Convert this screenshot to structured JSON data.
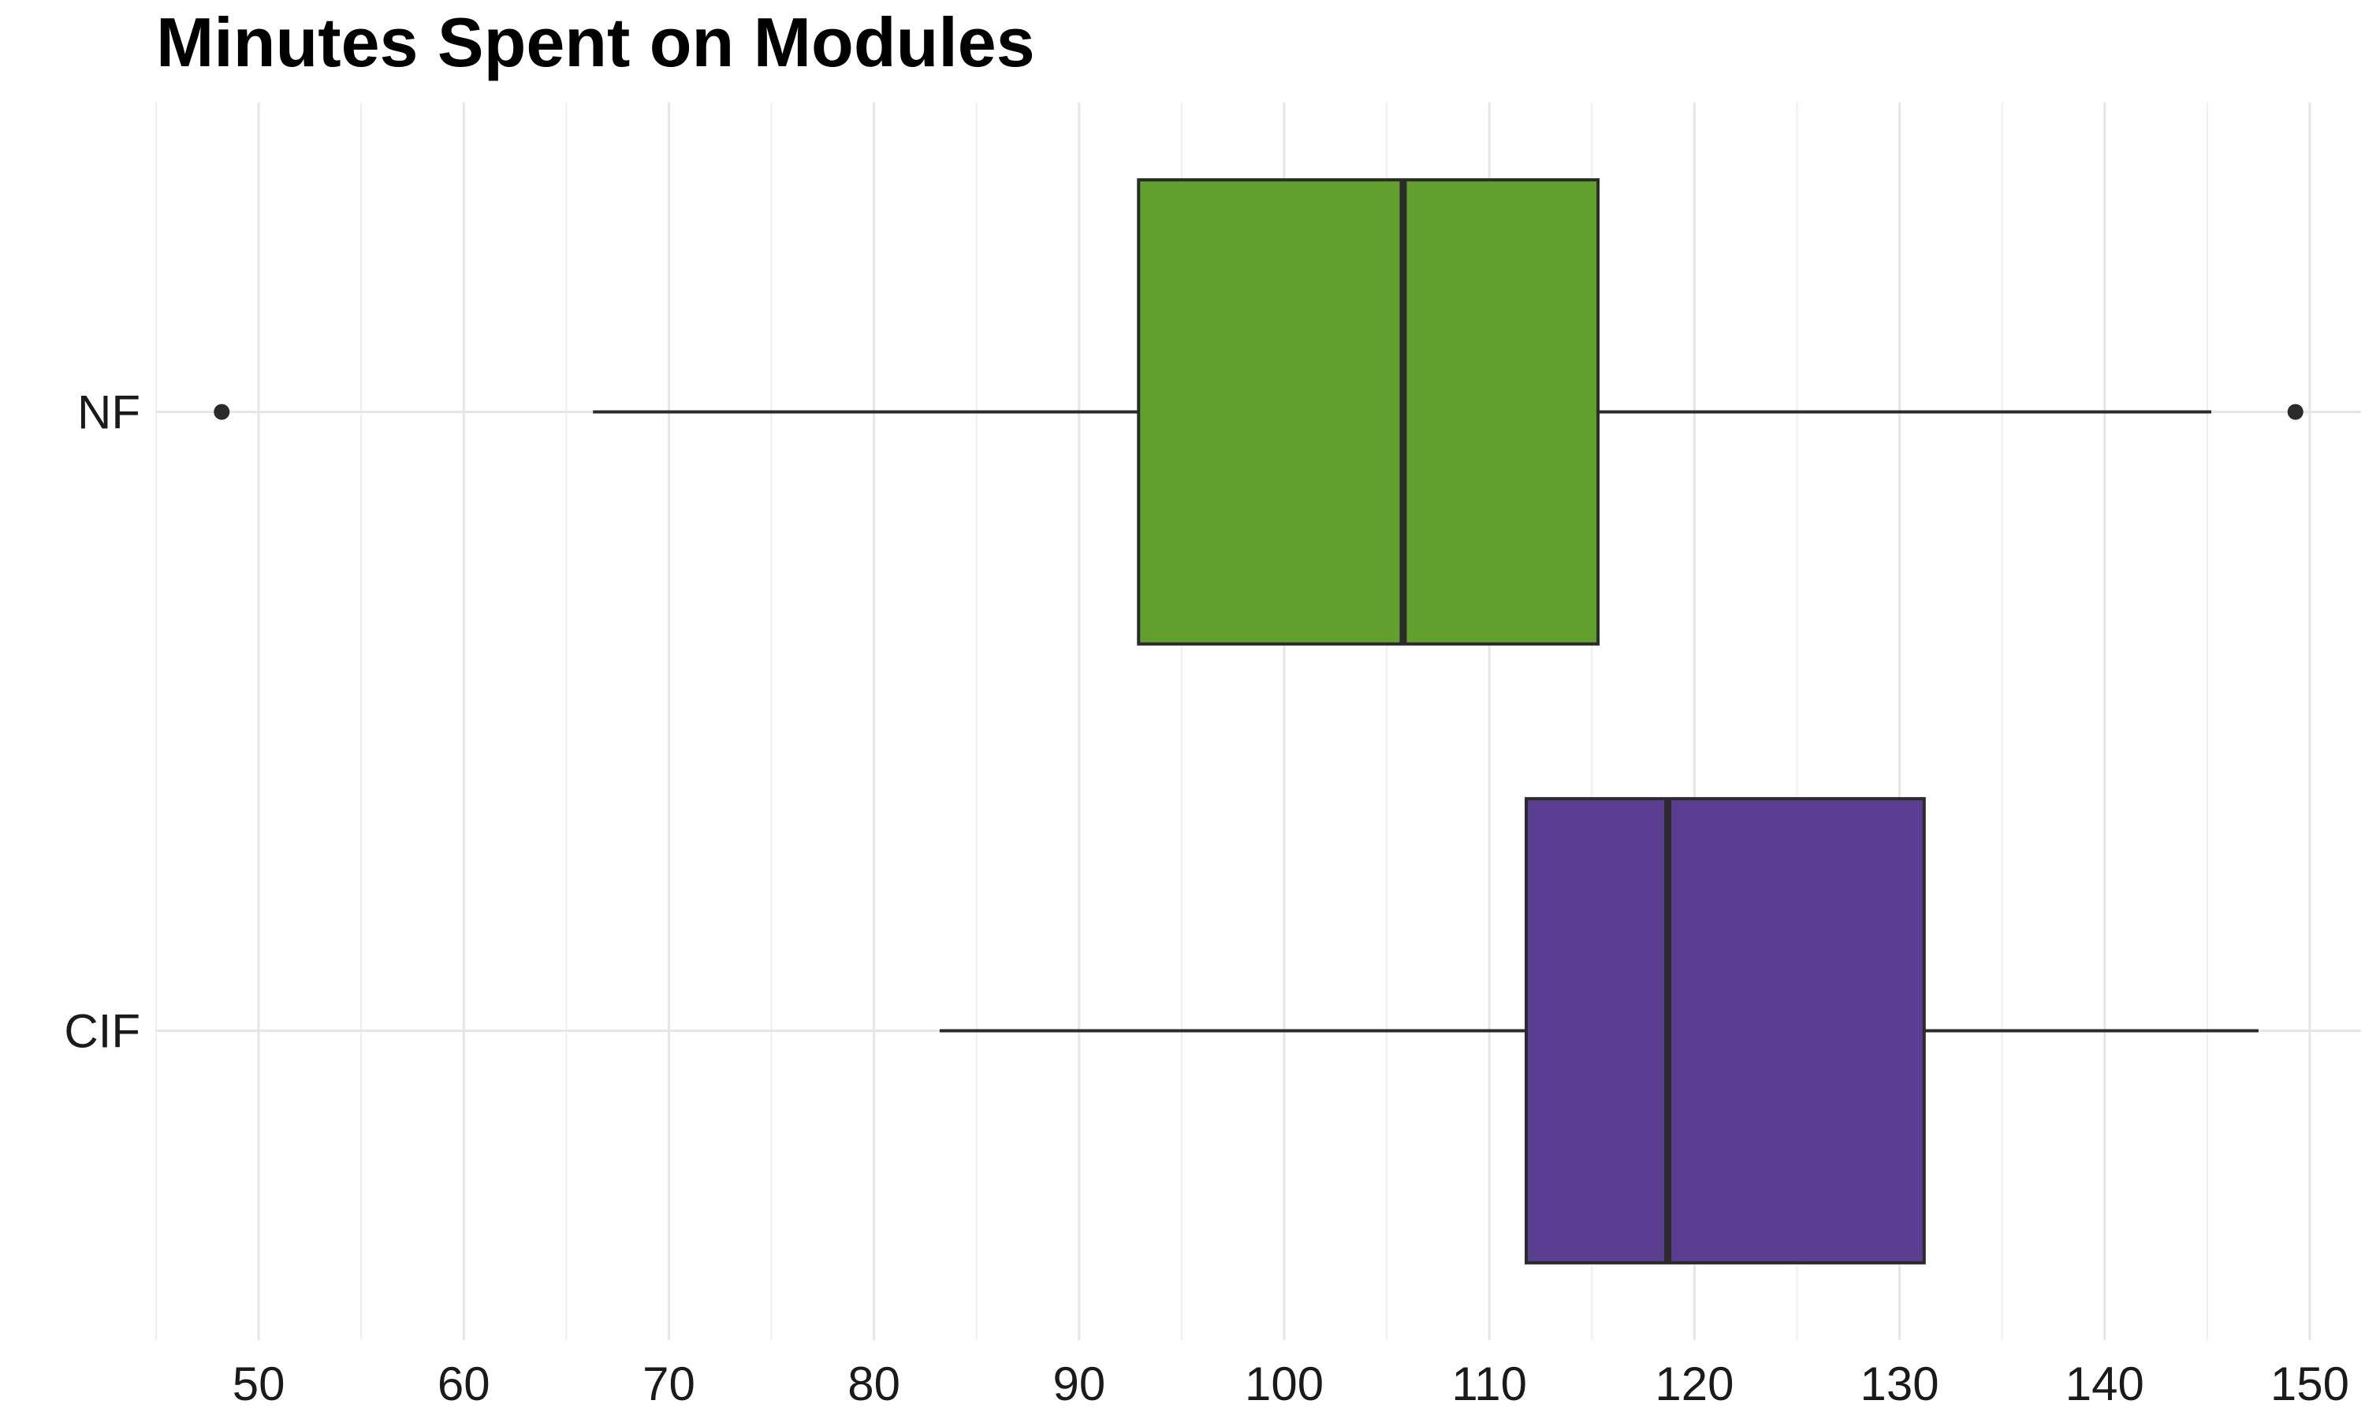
{
  "chart_data": {
    "type": "boxplot",
    "orientation": "horizontal",
    "title": "Minutes Spent on Modules",
    "xlabel": "",
    "ylabel": "",
    "xlim": [
      45,
      152.5
    ],
    "x_ticks": [
      50,
      60,
      70,
      80,
      90,
      100,
      110,
      120,
      130,
      140,
      150
    ],
    "grid": true,
    "categories": [
      "NF",
      "CIF"
    ],
    "series": [
      {
        "category": "NF",
        "color": "#61a02c",
        "whisker_low": 66.3,
        "q1": 92.9,
        "median": 105.8,
        "q3": 115.3,
        "whisker_high": 145.2,
        "outliers": [
          48.2,
          149.3
        ]
      },
      {
        "category": "CIF",
        "color": "#5b3d91",
        "whisker_low": 83.2,
        "q1": 111.8,
        "median": 118.7,
        "q3": 131.2,
        "whisker_high": 147.5,
        "outliers": []
      }
    ]
  }
}
